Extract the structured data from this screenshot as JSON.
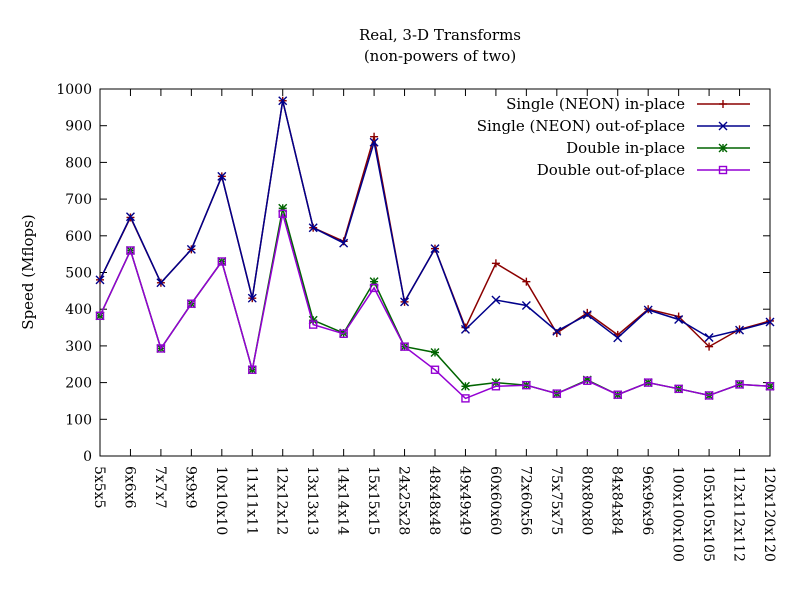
{
  "chart_data": {
    "type": "line",
    "title": "Real, 3-D Transforms",
    "subtitle": "(non-powers of two)",
    "xlabel": "",
    "ylabel": "Speed (Mflops)",
    "ylim": [
      0,
      1000
    ],
    "yticks": [
      0,
      100,
      200,
      300,
      400,
      500,
      600,
      700,
      800,
      900,
      1000
    ],
    "grid": false,
    "legend_position": "top-right",
    "categories": [
      "5x5x5",
      "6x6x6",
      "7x7x7",
      "9x9x9",
      "10x10x10",
      "11x11x11",
      "12x12x12",
      "13x13x13",
      "14x14x14",
      "15x15x15",
      "24x25x28",
      "48x48x48",
      "49x49x49",
      "60x60x60",
      "72x60x56",
      "75x75x75",
      "80x80x80",
      "84x84x84",
      "96x96x96",
      "100x100x100",
      "105x105x105",
      "112x112x112",
      "120x120x120"
    ],
    "series": [
      {
        "name": "Single (NEON) in-place",
        "color": "#8b0000",
        "marker": "plus",
        "values": [
          480,
          650,
          472,
          563,
          762,
          430,
          968,
          622,
          585,
          870,
          420,
          565,
          350,
          525,
          475,
          335,
          390,
          330,
          400,
          380,
          298,
          345,
          368
        ]
      },
      {
        "name": "Single (NEON) out-of-place",
        "color": "#00008b",
        "marker": "cross",
        "values": [
          480,
          652,
          472,
          563,
          762,
          430,
          968,
          622,
          580,
          855,
          420,
          565,
          345,
          425,
          410,
          340,
          385,
          322,
          398,
          372,
          323,
          343,
          365
        ]
      },
      {
        "name": "Double in-place",
        "color": "#006400",
        "marker": "star",
        "values": [
          382,
          560,
          293,
          415,
          530,
          235,
          675,
          370,
          335,
          475,
          298,
          282,
          190,
          200,
          193,
          170,
          207,
          167,
          200,
          183,
          165,
          195,
          190
        ]
      },
      {
        "name": "Double out-of-place",
        "color": "#9400d3",
        "marker": "box",
        "values": [
          382,
          560,
          293,
          415,
          530,
          235,
          660,
          358,
          333,
          458,
          298,
          235,
          157,
          190,
          193,
          170,
          205,
          167,
          200,
          183,
          165,
          195,
          190
        ]
      }
    ]
  }
}
